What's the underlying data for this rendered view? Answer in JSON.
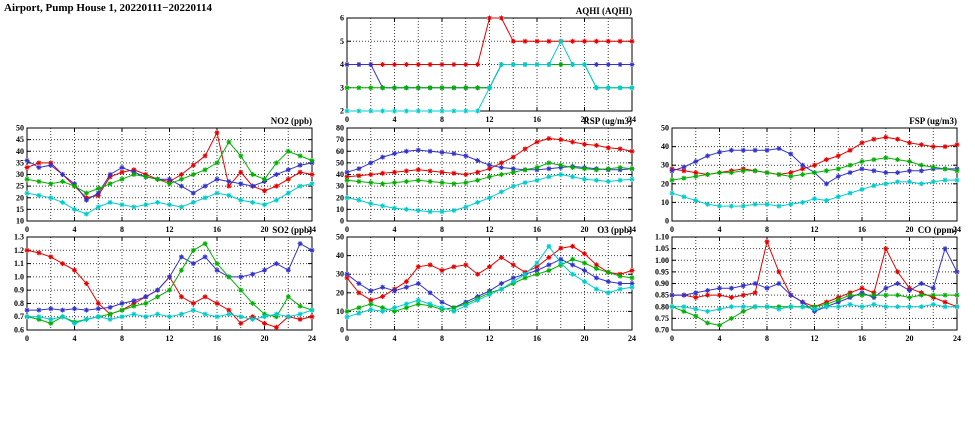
{
  "page_title": "Airport, Pump House 1, 20220111−20220114",
  "colors": {
    "red": "#e60000",
    "blue": "#3333cc",
    "green": "#00b000",
    "cyan": "#00cccc"
  },
  "x_axis": {
    "min": 0,
    "max": 24,
    "major_ticks": [
      0,
      4,
      8,
      12,
      16,
      20,
      24
    ],
    "minor_step": 2
  },
  "chart_data": [
    {
      "id": "aqhi",
      "type": "line",
      "title": "AQHI (AQHI)",
      "ylim": [
        2,
        6
      ],
      "yticks": [
        2,
        3,
        4,
        5,
        6
      ],
      "ytick_labels": [
        "2",
        "3",
        "4",
        "5",
        "6"
      ],
      "series": [
        {
          "name": "red",
          "color": "red",
          "values": [
            4,
            4,
            4,
            4,
            4,
            4,
            4,
            4,
            4,
            4,
            4,
            4,
            6,
            6,
            5,
            5,
            5,
            5,
            5,
            5,
            5,
            5,
            5,
            5,
            5
          ]
        },
        {
          "name": "blue",
          "color": "blue",
          "values": [
            4,
            4,
            4,
            3,
            3,
            3,
            3,
            3,
            3,
            3,
            3,
            3,
            3,
            4,
            4,
            4,
            4,
            4,
            4,
            4,
            4,
            4,
            4,
            4,
            4
          ]
        },
        {
          "name": "green",
          "color": "green",
          "values": [
            3,
            3,
            3,
            3,
            3,
            3,
            3,
            3,
            3,
            3,
            3,
            3,
            3,
            4,
            4,
            4,
            4,
            4,
            4,
            4,
            4,
            3,
            3,
            3,
            3
          ]
        },
        {
          "name": "cyan",
          "color": "cyan",
          "values": [
            2,
            2,
            2,
            2,
            2,
            2,
            2,
            2,
            2,
            2,
            2,
            2,
            3,
            4,
            4,
            4,
            4,
            4,
            5,
            4,
            4,
            3,
            3,
            3,
            3
          ]
        }
      ]
    },
    {
      "id": "no2",
      "type": "line",
      "title": "NO2 (ppb)",
      "ylim": [
        10,
        50
      ],
      "yticks": [
        10,
        15,
        20,
        25,
        30,
        35,
        40,
        45,
        50
      ],
      "ytick_labels": [
        "10",
        "15",
        "20",
        "25",
        "30",
        "35",
        "40",
        "45",
        "50"
      ],
      "series": [
        {
          "name": "red",
          "color": "red",
          "values": [
            33,
            35,
            35,
            30,
            25,
            20,
            21,
            29,
            31,
            32,
            30,
            28,
            27,
            30,
            34,
            38,
            48,
            25,
            31,
            25,
            23,
            25,
            28,
            31,
            30
          ]
        },
        {
          "name": "blue",
          "color": "blue",
          "values": [
            36,
            33,
            34,
            30,
            26,
            19,
            22,
            30,
            33,
            31,
            29,
            28,
            28,
            25,
            22,
            25,
            28,
            27,
            26,
            25,
            27,
            30,
            32,
            34,
            35
          ]
        },
        {
          "name": "green",
          "color": "green",
          "values": [
            28,
            27,
            26,
            27,
            25,
            22,
            24,
            26,
            28,
            30,
            29,
            28,
            26,
            28,
            30,
            32,
            35,
            44,
            38,
            30,
            28,
            35,
            40,
            38,
            36
          ]
        },
        {
          "name": "cyan",
          "color": "cyan",
          "values": [
            22,
            21,
            20,
            18,
            15,
            13,
            16,
            18,
            17,
            16,
            17,
            18,
            17,
            16,
            18,
            20,
            22,
            21,
            19,
            18,
            17,
            19,
            22,
            25,
            26
          ]
        }
      ]
    },
    {
      "id": "rsp",
      "type": "line",
      "title": "RSP (ug/m3)",
      "ylim": [
        0,
        80
      ],
      "yticks": [
        0,
        10,
        20,
        30,
        40,
        50,
        60,
        70,
        80
      ],
      "ytick_labels": [
        "0",
        "10",
        "20",
        "30",
        "40",
        "50",
        "60",
        "70",
        "80"
      ],
      "series": [
        {
          "name": "red",
          "color": "red",
          "values": [
            38,
            39,
            40,
            41,
            42,
            43,
            44,
            43,
            42,
            41,
            40,
            42,
            45,
            50,
            55,
            62,
            68,
            71,
            70,
            68,
            66,
            65,
            63,
            62,
            60
          ]
        },
        {
          "name": "blue",
          "color": "blue",
          "values": [
            42,
            45,
            50,
            55,
            58,
            60,
            61,
            60,
            59,
            58,
            56,
            52,
            48,
            46,
            45,
            44,
            44,
            45,
            46,
            47,
            46,
            45,
            44,
            44,
            45
          ]
        },
        {
          "name": "green",
          "color": "green",
          "values": [
            35,
            34,
            33,
            32,
            33,
            34,
            35,
            34,
            33,
            32,
            33,
            35,
            38,
            40,
            42,
            44,
            46,
            50,
            48,
            46,
            45,
            44,
            45,
            46,
            45
          ]
        },
        {
          "name": "cyan",
          "color": "cyan",
          "values": [
            20,
            18,
            15,
            13,
            11,
            10,
            9,
            8,
            8,
            9,
            12,
            16,
            20,
            25,
            30,
            33,
            35,
            38,
            40,
            38,
            36,
            35,
            34,
            35,
            36
          ]
        }
      ]
    },
    {
      "id": "fsp",
      "type": "line",
      "title": "FSP (ug/m3)",
      "ylim": [
        0,
        50
      ],
      "yticks": [
        0,
        10,
        20,
        30,
        40,
        50
      ],
      "ytick_labels": [
        "0",
        "10",
        "20",
        "30",
        "40",
        "50"
      ],
      "series": [
        {
          "name": "red",
          "color": "red",
          "values": [
            28,
            27,
            26,
            25,
            26,
            27,
            28,
            27,
            26,
            25,
            26,
            28,
            30,
            33,
            35,
            38,
            42,
            44,
            45,
            44,
            42,
            41,
            40,
            40,
            41
          ]
        },
        {
          "name": "blue",
          "color": "blue",
          "values": [
            27,
            29,
            32,
            35,
            37,
            38,
            38,
            38,
            38,
            39,
            36,
            30,
            26,
            20,
            24,
            26,
            28,
            27,
            26,
            26,
            27,
            27,
            28,
            28,
            28
          ]
        },
        {
          "name": "green",
          "color": "green",
          "values": [
            22,
            23,
            24,
            25,
            26,
            26,
            27,
            27,
            26,
            25,
            24,
            25,
            26,
            27,
            28,
            30,
            32,
            33,
            34,
            33,
            32,
            30,
            29,
            28,
            27
          ]
        },
        {
          "name": "cyan",
          "color": "cyan",
          "values": [
            15,
            13,
            11,
            9,
            8,
            8,
            8,
            9,
            9,
            8,
            9,
            10,
            12,
            11,
            13,
            15,
            17,
            19,
            20,
            21,
            21,
            20,
            21,
            22,
            22
          ]
        }
      ]
    },
    {
      "id": "so2",
      "type": "line",
      "title": "SO2 (ppb)",
      "ylim": [
        0.6,
        1.3
      ],
      "yticks": [
        0.6,
        0.7,
        0.8,
        0.9,
        1.0,
        1.1,
        1.2,
        1.3
      ],
      "ytick_labels": [
        "0.6",
        "0.7",
        "0.8",
        "0.9",
        "1.0",
        "1.1",
        "1.2",
        "1.3"
      ],
      "series": [
        {
          "name": "red",
          "color": "red",
          "values": [
            1.2,
            1.18,
            1.15,
            1.1,
            1.05,
            0.95,
            0.8,
            0.72,
            0.75,
            0.8,
            0.85,
            0.9,
            1.0,
            0.85,
            0.8,
            0.85,
            0.8,
            0.75,
            0.65,
            0.7,
            0.65,
            0.62,
            0.7,
            0.68,
            0.7
          ]
        },
        {
          "name": "blue",
          "color": "blue",
          "values": [
            0.75,
            0.75,
            0.76,
            0.75,
            0.76,
            0.75,
            0.76,
            0.77,
            0.8,
            0.82,
            0.85,
            0.9,
            1.0,
            1.15,
            1.1,
            1.15,
            1.05,
            1.0,
            1.0,
            1.02,
            1.05,
            1.1,
            1.05,
            1.25,
            1.2
          ]
        },
        {
          "name": "green",
          "color": "green",
          "values": [
            0.7,
            0.68,
            0.65,
            0.7,
            0.66,
            0.68,
            0.7,
            0.72,
            0.75,
            0.78,
            0.8,
            0.85,
            0.9,
            1.05,
            1.2,
            1.25,
            1.1,
            1.0,
            0.9,
            0.8,
            0.72,
            0.7,
            0.85,
            0.78,
            0.75
          ]
        },
        {
          "name": "cyan",
          "color": "cyan",
          "values": [
            0.7,
            0.7,
            0.68,
            0.7,
            0.65,
            0.68,
            0.7,
            0.68,
            0.7,
            0.72,
            0.7,
            0.72,
            0.7,
            0.72,
            0.75,
            0.72,
            0.7,
            0.72,
            0.7,
            0.68,
            0.7,
            0.72,
            0.7,
            0.72,
            0.75
          ]
        }
      ]
    },
    {
      "id": "o3",
      "type": "line",
      "title": "O3 (ppb)",
      "ylim": [
        0,
        50
      ],
      "yticks": [
        0,
        10,
        20,
        30,
        40,
        50
      ],
      "ytick_labels": [
        "0",
        "10",
        "20",
        "30",
        "40",
        "50"
      ],
      "series": [
        {
          "name": "red",
          "color": "red",
          "values": [
            28,
            20,
            16,
            18,
            22,
            26,
            34,
            35,
            32,
            34,
            35,
            30,
            34,
            39,
            35,
            31,
            34,
            39,
            44,
            45,
            41,
            35,
            31,
            30,
            32
          ]
        },
        {
          "name": "blue",
          "color": "blue",
          "values": [
            30,
            25,
            21,
            23,
            21,
            23,
            25,
            20,
            15,
            12,
            15,
            18,
            21,
            25,
            28,
            30,
            32,
            35,
            38,
            35,
            32,
            28,
            26,
            25,
            25
          ]
        },
        {
          "name": "green",
          "color": "green",
          "values": [
            10,
            12,
            14,
            12,
            10,
            12,
            14,
            13,
            11,
            12,
            14,
            17,
            20,
            22,
            25,
            28,
            30,
            32,
            35,
            38,
            36,
            33,
            31,
            29,
            28
          ]
        },
        {
          "name": "cyan",
          "color": "cyan",
          "values": [
            7,
            9,
            11,
            10,
            12,
            14,
            16,
            14,
            12,
            10,
            13,
            16,
            19,
            22,
            26,
            30,
            36,
            45,
            36,
            30,
            26,
            22,
            20,
            22,
            23
          ]
        }
      ]
    },
    {
      "id": "co",
      "type": "line",
      "title": "CO (ppm)",
      "ylim": [
        0.7,
        1.1
      ],
      "yticks": [
        0.7,
        0.75,
        0.8,
        0.85,
        0.9,
        0.95,
        1.0,
        1.05,
        1.1
      ],
      "ytick_labels": [
        "0.70",
        "0.75",
        "0.80",
        "0.85",
        "0.90",
        "0.95",
        "1.00",
        "1.05",
        "1.10"
      ],
      "series": [
        {
          "name": "red",
          "color": "red",
          "values": [
            0.85,
            0.85,
            0.84,
            0.85,
            0.85,
            0.84,
            0.85,
            0.86,
            1.08,
            0.95,
            0.85,
            0.82,
            0.8,
            0.82,
            0.84,
            0.86,
            0.88,
            0.86,
            1.05,
            0.95,
            0.88,
            0.86,
            0.84,
            0.82,
            0.8
          ]
        },
        {
          "name": "blue",
          "color": "blue",
          "values": [
            0.85,
            0.85,
            0.86,
            0.87,
            0.88,
            0.88,
            0.89,
            0.9,
            0.88,
            0.9,
            0.85,
            0.82,
            0.78,
            0.8,
            0.82,
            0.84,
            0.86,
            0.84,
            0.88,
            0.9,
            0.87,
            0.9,
            0.88,
            1.05,
            0.95
          ]
        },
        {
          "name": "green",
          "color": "green",
          "values": [
            0.8,
            0.78,
            0.76,
            0.73,
            0.72,
            0.75,
            0.78,
            0.8,
            0.8,
            0.8,
            0.8,
            0.8,
            0.8,
            0.81,
            0.83,
            0.85,
            0.85,
            0.85,
            0.85,
            0.85,
            0.84,
            0.85,
            0.85,
            0.85,
            0.85
          ]
        },
        {
          "name": "cyan",
          "color": "cyan",
          "values": [
            0.8,
            0.8,
            0.79,
            0.78,
            0.79,
            0.8,
            0.8,
            0.8,
            0.8,
            0.79,
            0.8,
            0.8,
            0.79,
            0.8,
            0.8,
            0.81,
            0.8,
            0.81,
            0.8,
            0.8,
            0.8,
            0.8,
            0.81,
            0.8,
            0.8
          ]
        }
      ]
    }
  ]
}
